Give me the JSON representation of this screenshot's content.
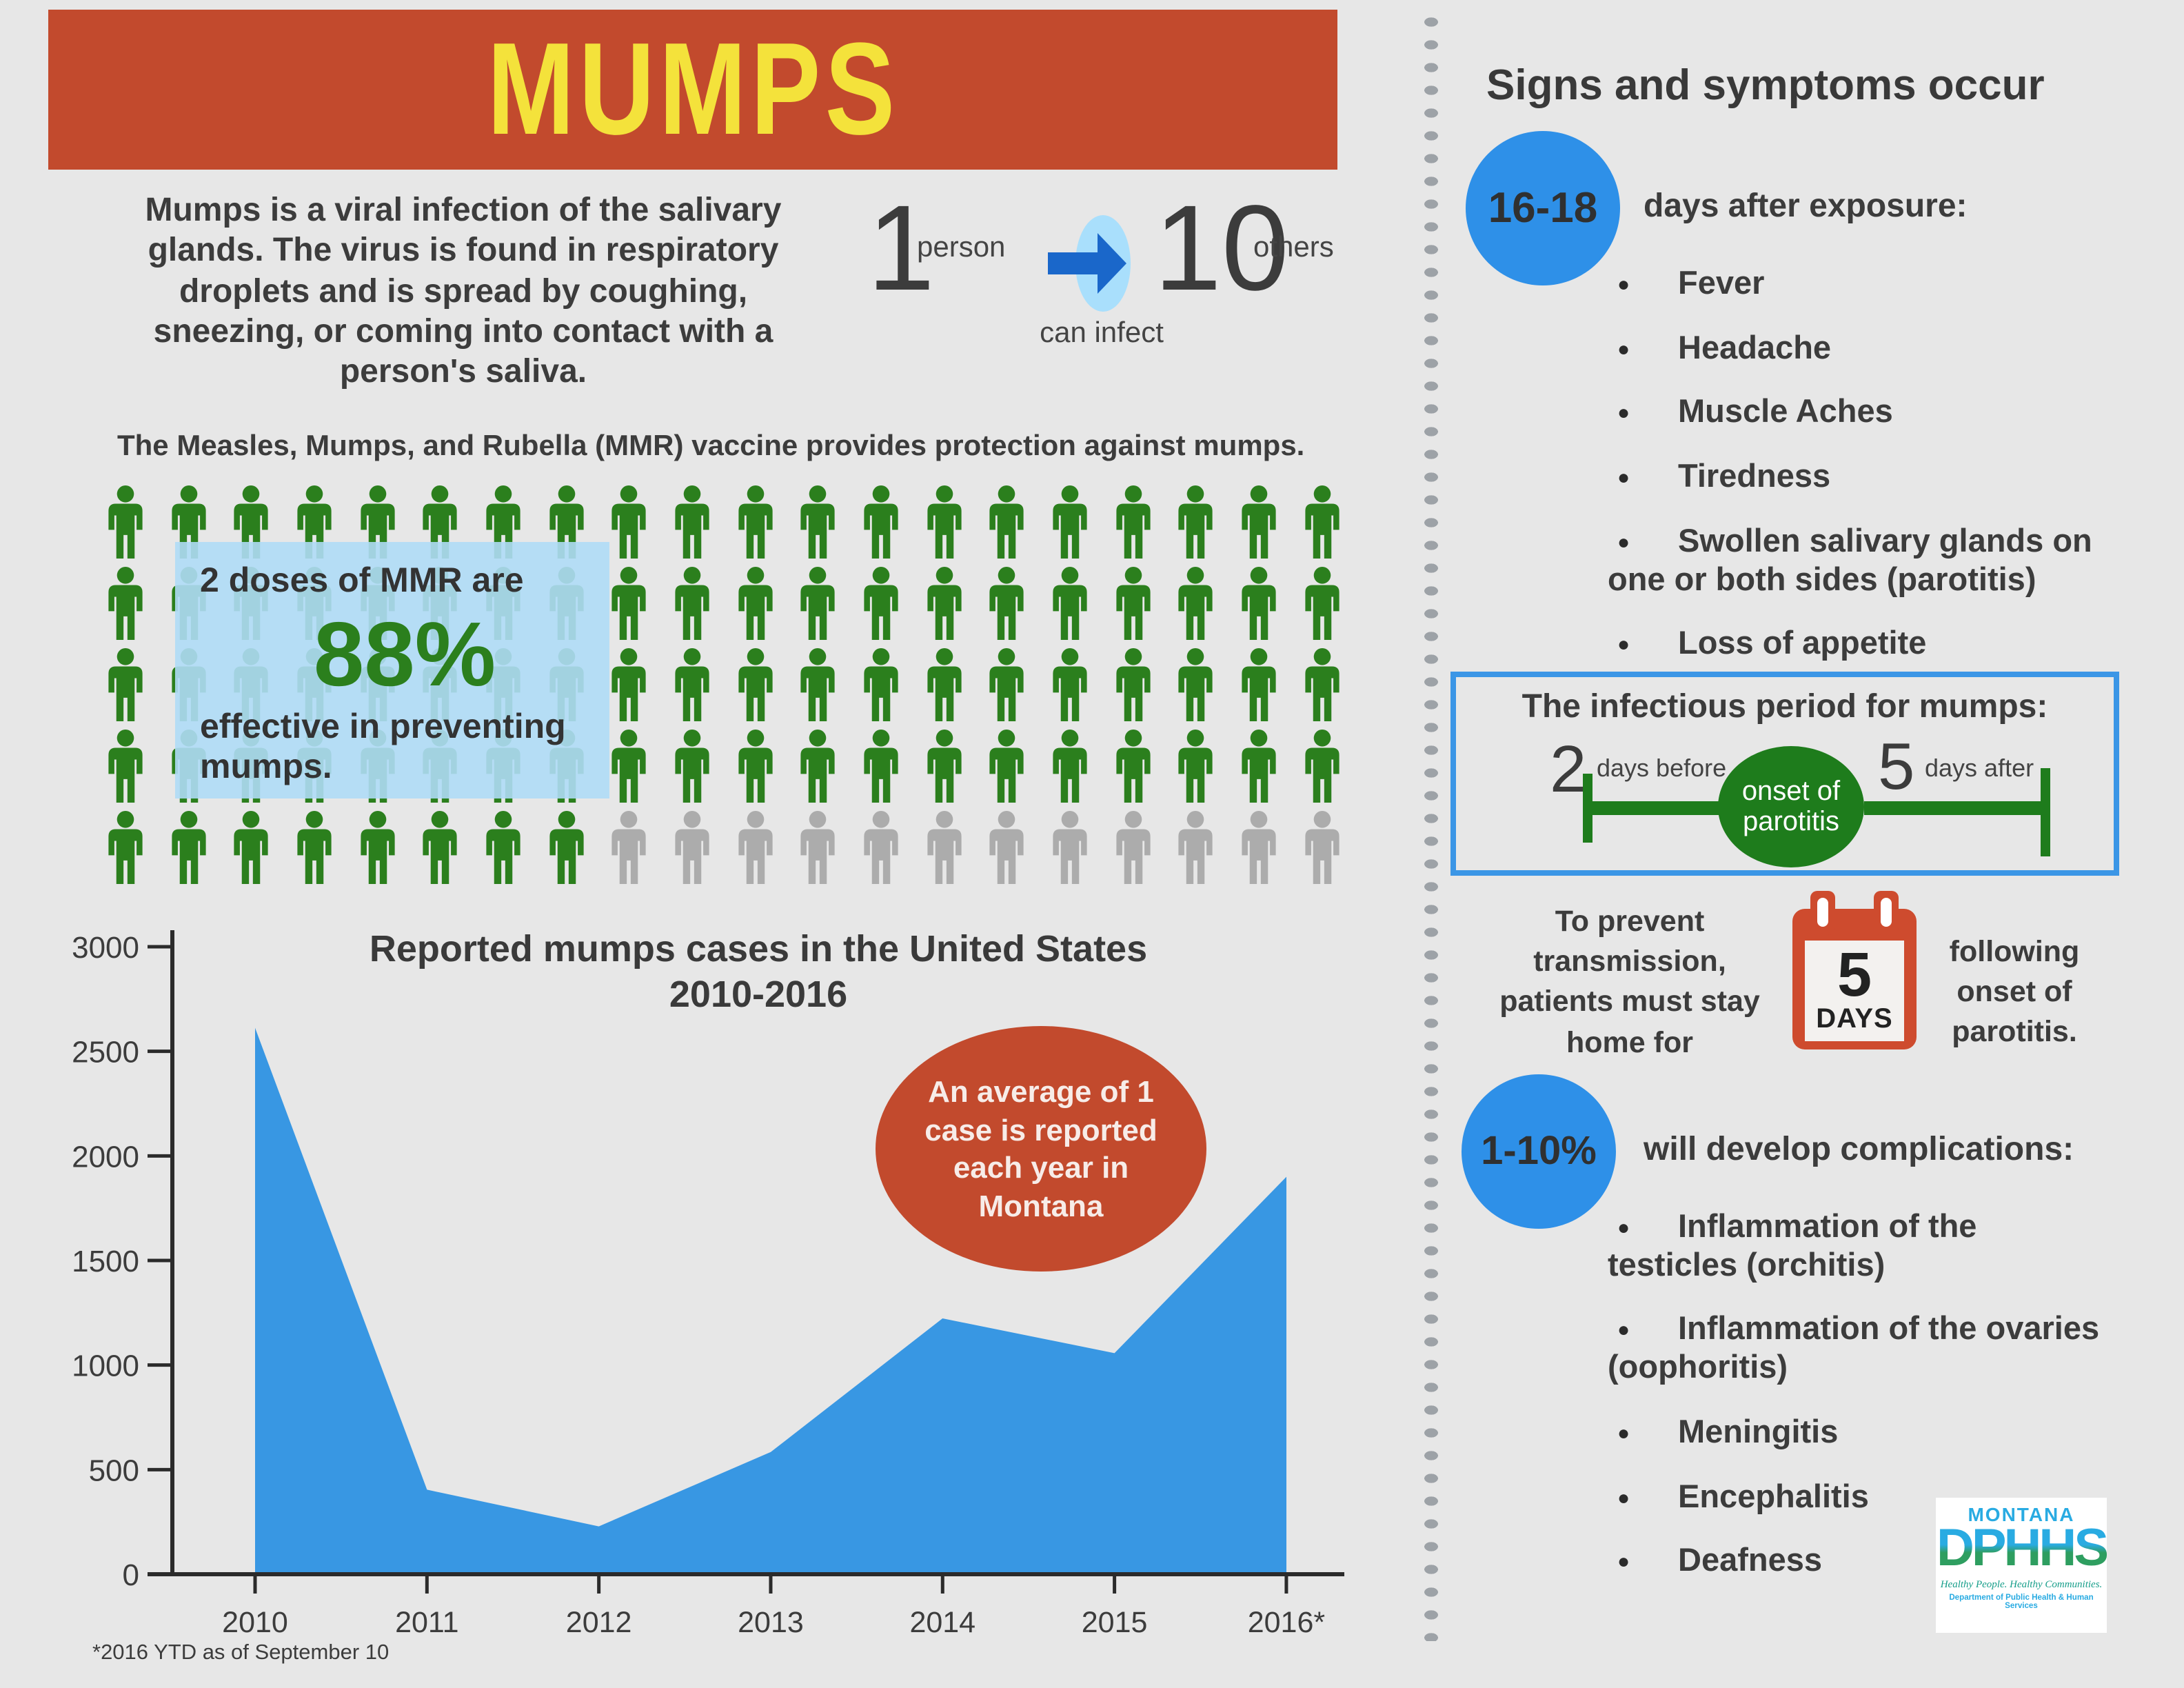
{
  "colors": {
    "page_bg": "#E7E7E7",
    "banner_red": "#C24A2D",
    "title_yellow": "#F4E23B",
    "text_dark": "#3C3C3C",
    "person_green": "#2B7F1D",
    "person_gray": "#ACACAC",
    "overlay_blue": "#AFDCF6",
    "chart_blue": "#3897E3",
    "badge_blue": "#2E90E8",
    "timeline_green": "#1E7C1C",
    "box_border_blue": "#3B96E6",
    "arrow_blue": "#1A67CA",
    "arrow_ellipse_blue": "#A9DFFC",
    "calendar_red": "#CE4B2E",
    "logo_blue": "#29ABE2",
    "logo_green": "#2E9E60",
    "logo_teal": "#179E8A"
  },
  "banner": {
    "title": "MUMPS"
  },
  "intro": {
    "text": "Mumps is a viral infection of the salivary glands. The virus is found in respiratory droplets and is spread by coughing, sneezing, or coming into contact with a person's saliva."
  },
  "transmission": {
    "count_from": "1",
    "label_from": "person",
    "connector": "can infect",
    "count_to": "10",
    "label_to": "others"
  },
  "vaccine": {
    "headline": "The Measles, Mumps, and Rubella (MMR) vaccine provides protection against mumps.",
    "pictograph": {
      "rows": 5,
      "cols": 20,
      "green_count": 88,
      "gray_count": 12
    },
    "overlay": {
      "line1": "2 doses of MMR are",
      "stat": "88%",
      "line2": "effective in preventing mumps."
    }
  },
  "chart_data": {
    "type": "area",
    "title": "Reported mumps cases in the United States 2010-2016",
    "title_lines": [
      "Reported mumps cases in the United States",
      "2010-2016"
    ],
    "categories": [
      "2010",
      "2011",
      "2012",
      "2013",
      "2014",
      "2015",
      "2016*"
    ],
    "values": [
      2612,
      404,
      229,
      584,
      1223,
      1057,
      1900
    ],
    "xlabel": "",
    "ylabel": "",
    "ylim": [
      0,
      3000
    ],
    "yticks": [
      0,
      500,
      1000,
      1500,
      2000,
      2500,
      3000
    ],
    "grid": false,
    "legend": false,
    "annotation": "An average of 1 case is reported each year in Montana",
    "footnote": "*2016 YTD as of September 10"
  },
  "sidebar": {
    "header": "Signs and symptoms occur",
    "incubation": {
      "badge": "16-18",
      "label": "days after exposure:"
    },
    "symptoms": [
      "Fever",
      "Headache",
      "Muscle Aches",
      "Tiredness",
      "Swollen salivary glands on one or both sides (parotitis)",
      "Loss of appetite"
    ],
    "infectious_period": {
      "title": "The infectious period for mumps:",
      "before_value": "2",
      "before_label": "days before",
      "center_label": "onset of parotitis",
      "after_value": "5",
      "after_label": "days after"
    },
    "isolation": {
      "left_text": "To prevent transmission, patients must stay home for",
      "calendar_value": "5",
      "calendar_label": "DAYS",
      "right_text": "following onset of parotitis."
    },
    "complications": {
      "badge": "1-10%",
      "label": "will develop complications:",
      "items": [
        "Inflammation of the testicles (orchitis)",
        "Inflammation of the ovaries (oophoritis)",
        "Meningitis",
        "Encephalitis",
        "Deafness"
      ]
    },
    "logo": {
      "region": "MONTANA",
      "acronym": "DPHHS",
      "tagline1": "Healthy People.",
      "tagline2": "Healthy Communities.",
      "department": "Department of Public Health & Human Services"
    }
  }
}
